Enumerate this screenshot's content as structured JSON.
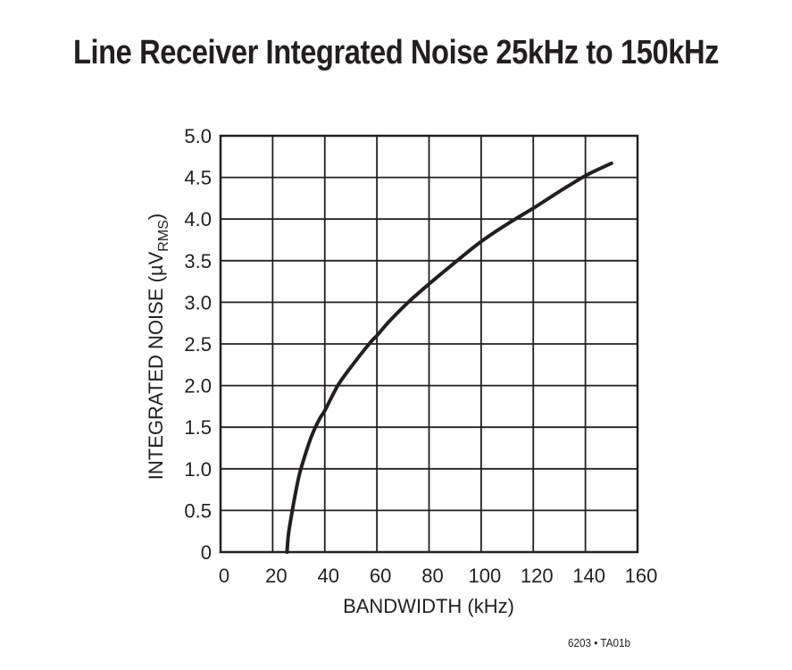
{
  "title": "Line Receiver Integrated Noise 25kHz to 150kHz",
  "footnote": "6203 • TA01b",
  "colors": {
    "curve": "#231f20",
    "grid": "#231f20",
    "background": "#ffffff",
    "text": "#231f20"
  },
  "chart_data": {
    "type": "line",
    "title": "Line Receiver Integrated Noise 25kHz to 150kHz",
    "xlabel": "BANDWIDTH (kHz)",
    "ylabel": "INTEGRATED NOISE (µV",
    "ylabel_subscript": "RMS",
    "ylabel_suffix": ")",
    "xlim": [
      0,
      160
    ],
    "ylim": [
      0,
      5.0
    ],
    "x_ticks": [
      0,
      20,
      40,
      60,
      80,
      100,
      120,
      140,
      160
    ],
    "x_tick_labels": [
      "0",
      "20",
      "40",
      "60",
      "80",
      "100",
      "120",
      "140",
      "160"
    ],
    "y_ticks": [
      0,
      0.5,
      1.0,
      1.5,
      2.0,
      2.5,
      3.0,
      3.5,
      4.0,
      4.5,
      5.0
    ],
    "y_tick_labels": [
      "0",
      "0.5",
      "1.0",
      "1.5",
      "2.0",
      "2.5",
      "3.0",
      "3.5",
      "4.0",
      "4.5",
      "5.0"
    ],
    "grid": true,
    "legend": null,
    "series": [
      {
        "name": "Integrated Noise",
        "x": [
          25.5,
          26,
          27,
          28,
          30,
          32,
          35,
          38,
          40,
          45,
          50,
          57,
          60,
          65,
          72,
          80,
          90,
          100,
          110,
          120,
          130,
          140,
          150
        ],
        "y": [
          0,
          0.2,
          0.4,
          0.58,
          0.9,
          1.12,
          1.4,
          1.6,
          1.7,
          2.0,
          2.22,
          2.5,
          2.6,
          2.78,
          3.0,
          3.22,
          3.48,
          3.73,
          3.94,
          4.13,
          4.33,
          4.52,
          4.67
        ]
      }
    ]
  }
}
